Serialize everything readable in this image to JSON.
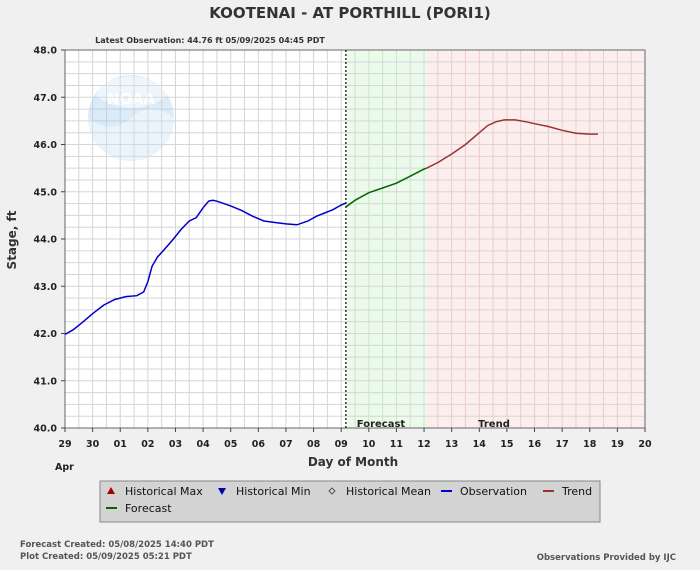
{
  "chart_data": {
    "type": "line",
    "title": "KOOTENAI - AT PORTHILL  (PORI1)",
    "latest_observation": "Latest Observation: 44.76 ft 05/09/2025 04:45 PDT",
    "ylabel": "Stage, ft",
    "xlabel": "Day of Month",
    "month_label": "Apr",
    "ylim": [
      40.0,
      48.0
    ],
    "yticks": [
      "40.0",
      "41.0",
      "42.0",
      "43.0",
      "44.0",
      "45.0",
      "46.0",
      "47.0",
      "48.0"
    ],
    "xlim": [
      0,
      21
    ],
    "xtick_labels": [
      "29",
      "30",
      "01",
      "02",
      "03",
      "04",
      "05",
      "06",
      "07",
      "08",
      "09",
      "10",
      "11",
      "12",
      "13",
      "14",
      "15",
      "16",
      "17",
      "18",
      "19",
      "20"
    ],
    "x_unit_note": "x values are days counted from Apr 29 (0 = Apr 29)",
    "zones": [
      {
        "name": "Forecast",
        "from": 10.2,
        "to": 13.1,
        "color": "#ebfaeb",
        "grid": "#c8e6c8"
      },
      {
        "name": "Trend",
        "from": 13.1,
        "to": 21.0,
        "color": "#fdeeee",
        "grid": "#eccaca"
      }
    ],
    "now_x": 10.17,
    "series": [
      {
        "name": "Observation",
        "color": "#0000cc",
        "x": [
          0.0,
          0.3,
          0.6,
          1.0,
          1.4,
          1.8,
          2.2,
          2.6,
          2.85,
          3.0,
          3.15,
          3.35,
          3.6,
          3.9,
          4.2,
          4.5,
          4.75,
          5.0,
          5.2,
          5.35,
          5.5,
          5.7,
          6.0,
          6.4,
          6.8,
          7.2,
          7.6,
          8.0,
          8.4,
          8.8,
          9.1,
          9.4,
          9.7,
          10.0,
          10.17
        ],
        "values": [
          41.98,
          42.08,
          42.22,
          42.42,
          42.6,
          42.72,
          42.78,
          42.8,
          42.88,
          43.1,
          43.42,
          43.62,
          43.78,
          43.98,
          44.2,
          44.38,
          44.45,
          44.66,
          44.8,
          44.82,
          44.8,
          44.76,
          44.7,
          44.6,
          44.48,
          44.38,
          44.35,
          44.32,
          44.3,
          44.38,
          44.48,
          44.55,
          44.62,
          44.72,
          44.76
        ]
      },
      {
        "name": "Forecast",
        "color": "#006600",
        "x": [
          10.17,
          10.5,
          11.0,
          11.5,
          12.0,
          12.5,
          13.0,
          13.1
        ],
        "values": [
          44.68,
          44.82,
          44.98,
          45.08,
          45.18,
          45.33,
          45.48,
          45.5
        ]
      },
      {
        "name": "Trend",
        "color": "#993333",
        "x": [
          13.1,
          13.5,
          14.0,
          14.5,
          15.0,
          15.3,
          15.6,
          15.9,
          16.3,
          16.7,
          17.0,
          17.5,
          18.0,
          18.5,
          19.0,
          19.3
        ],
        "values": [
          45.5,
          45.62,
          45.8,
          46.0,
          46.25,
          46.4,
          46.48,
          46.52,
          46.52,
          46.48,
          46.44,
          46.38,
          46.3,
          46.24,
          46.22,
          46.22
        ]
      }
    ],
    "legend_position": "bottom",
    "legend": [
      {
        "name": "Historical Max",
        "marker": "triangle-up",
        "color": "#aa0000"
      },
      {
        "name": "Historical Min",
        "marker": "triangle-down",
        "color": "#0000aa"
      },
      {
        "name": "Historical Mean",
        "marker": "diamond",
        "color": "#555555"
      },
      {
        "name": "Observation",
        "marker": "line",
        "color": "#0000cc"
      },
      {
        "name": "Trend",
        "marker": "line",
        "color": "#993333"
      },
      {
        "name": "Forecast",
        "marker": "line",
        "color": "#006600"
      }
    ],
    "grid": true
  },
  "watermark": {
    "logo_text": "NOAA"
  },
  "footer": {
    "forecast_created": "Forecast Created: 05/08/2025 14:40 PDT",
    "plot_created": "Plot Created: 05/09/2025 05:21 PDT",
    "provider": "Observations Provided by IJC"
  }
}
